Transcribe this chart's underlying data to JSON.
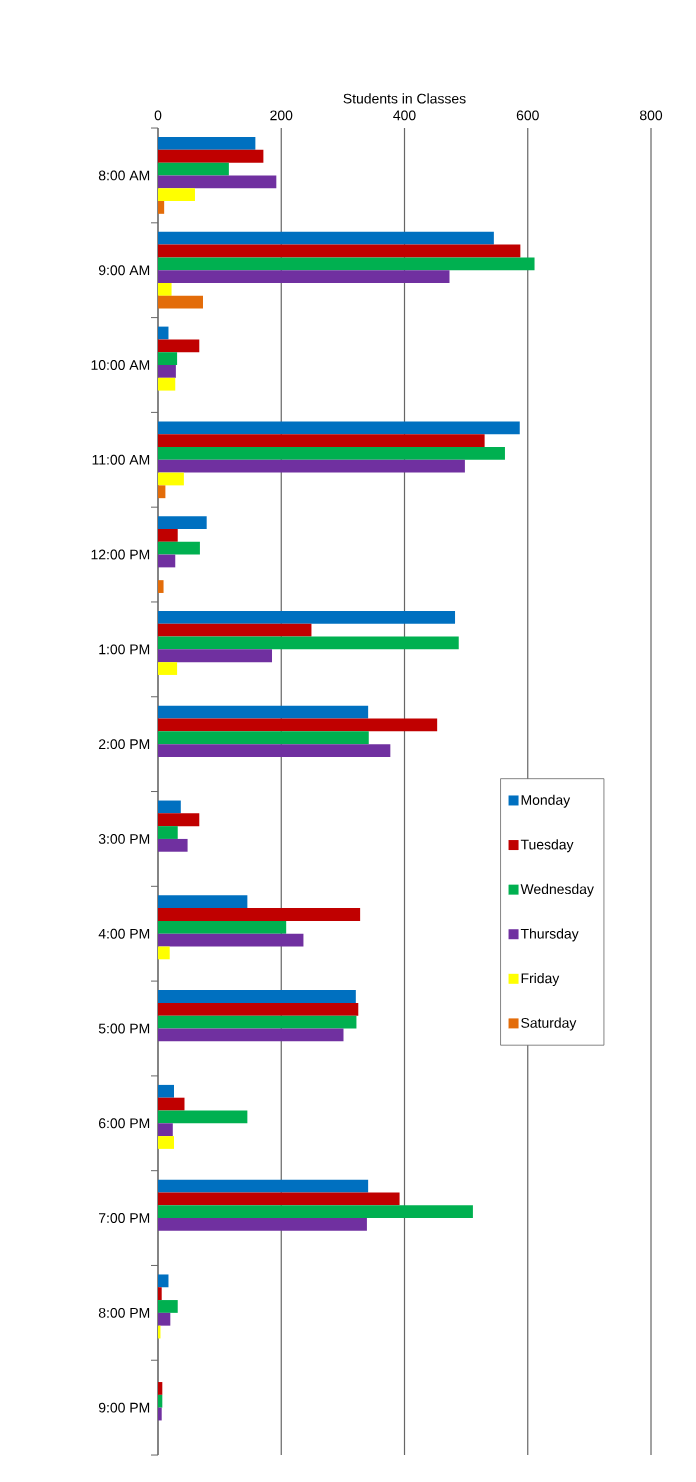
{
  "chart_data": {
    "type": "bar",
    "orientation": "horizontal",
    "xlabel": "Students in Classes",
    "categories": [
      "8:00 AM",
      "9:00 AM",
      "10:00 AM",
      "11:00 AM",
      "12:00 PM",
      "1:00 PM",
      "2:00 PM",
      "3:00 PM",
      "4:00 PM",
      "5:00 PM",
      "6:00 PM",
      "7:00 PM",
      "8:00 PM",
      "9:00 PM"
    ],
    "series": [
      {
        "name": "Monday",
        "color": "#0070c0",
        "values": [
          158,
          545,
          17,
          587,
          79,
          482,
          341,
          37,
          145,
          321,
          26,
          341,
          17,
          null
        ]
      },
      {
        "name": "Tuesday",
        "color": "#c00000",
        "values": [
          171,
          588,
          67,
          530,
          32,
          249,
          453,
          67,
          328,
          325,
          43,
          392,
          6,
          7
        ]
      },
      {
        "name": "Wednesday",
        "color": "#00b050",
        "values": [
          115,
          611,
          31,
          563,
          68,
          488,
          342,
          32,
          208,
          322,
          145,
          511,
          32,
          7
        ]
      },
      {
        "name": "Thursday",
        "color": "#7030a0",
        "values": [
          192,
          473,
          29,
          498,
          28,
          185,
          377,
          48,
          236,
          301,
          24,
          339,
          20,
          6
        ]
      },
      {
        "name": "Friday",
        "color": "#ffff00",
        "values": [
          60,
          22,
          28,
          42,
          null,
          31,
          null,
          null,
          19,
          null,
          26,
          null,
          4,
          null
        ]
      },
      {
        "name": "Saturday",
        "color": "#e36c09",
        "values": [
          10,
          73,
          null,
          12,
          9,
          null,
          null,
          null,
          null,
          null,
          null,
          null,
          null,
          null
        ]
      }
    ],
    "xlim": [
      0,
      800
    ],
    "xticks": [
      0,
      200,
      400,
      600,
      800
    ],
    "grid": "x",
    "legend": "right"
  }
}
